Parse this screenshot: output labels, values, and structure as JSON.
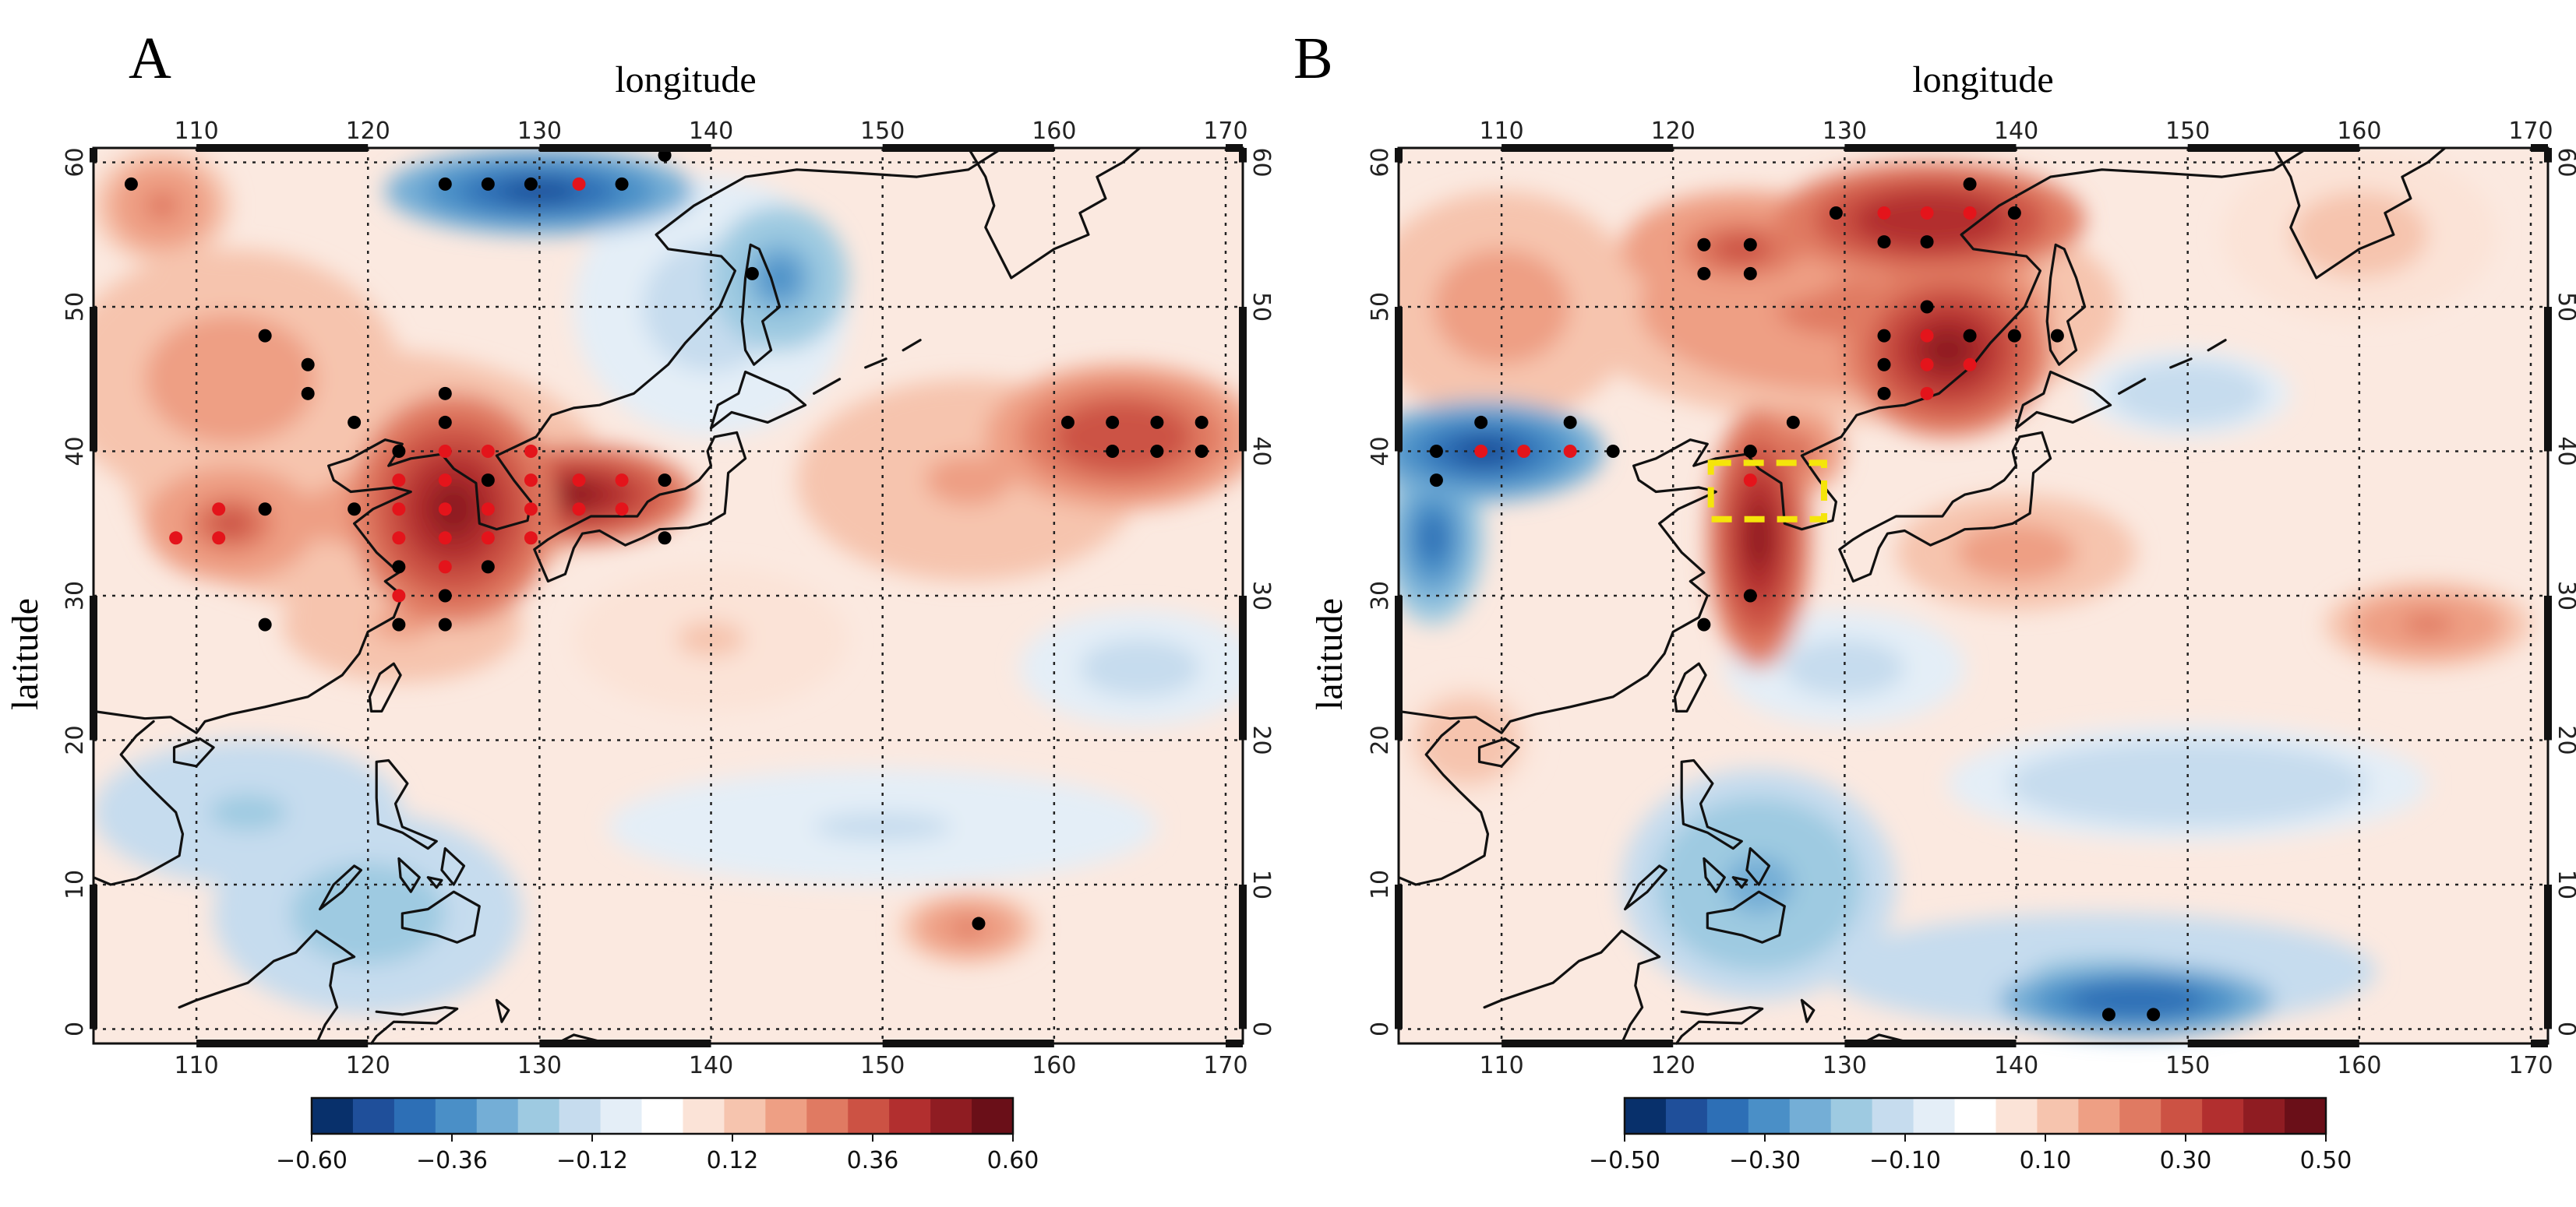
{
  "figure": {
    "panels": [
      {
        "id": "A",
        "letter": "A",
        "xlabel": "longitude",
        "ylabel": "latitude",
        "lon_ticks": [
          "110",
          "120",
          "130",
          "140",
          "150",
          "160",
          "170"
        ],
        "lat_ticks": [
          "0",
          "10",
          "20",
          "30",
          "40",
          "50",
          "60"
        ],
        "lon_range": [
          104,
          171
        ],
        "lat_range": [
          -1,
          61
        ],
        "colorbar": {
          "range": [
            -0.6,
            0.6
          ],
          "tick_labels": [
            "−0.60",
            "−0.36",
            "−0.12",
            "0.12",
            "0.36",
            "0.60"
          ],
          "tick_values": [
            -0.6,
            -0.36,
            -0.12,
            0.12,
            0.36,
            0.6
          ]
        },
        "blobs": [
          {
            "lon": 125,
            "lat": 36,
            "rx": 6,
            "ry": 8,
            "v": 0.55
          },
          {
            "lon": 132,
            "lat": 37,
            "rx": 7,
            "ry": 3.5,
            "v": 0.5
          },
          {
            "lon": 120,
            "lat": 38,
            "rx": 14,
            "ry": 9,
            "v": 0.25
          },
          {
            "lon": 112,
            "lat": 35,
            "rx": 5,
            "ry": 4,
            "v": 0.35
          },
          {
            "lon": 112,
            "lat": 45,
            "rx": 10,
            "ry": 9,
            "v": 0.25
          },
          {
            "lon": 108,
            "lat": 57,
            "rx": 4,
            "ry": 4,
            "v": 0.3
          },
          {
            "lon": 122,
            "lat": 28,
            "rx": 7,
            "ry": 4,
            "v": 0.2
          },
          {
            "lon": 164,
            "lat": 41,
            "rx": 8,
            "ry": 5,
            "v": 0.4
          },
          {
            "lon": 155,
            "lat": 38,
            "rx": 10,
            "ry": 7,
            "v": 0.2
          },
          {
            "lon": 155,
            "lat": 7,
            "rx": 4,
            "ry": 2.5,
            "v": 0.3
          },
          {
            "lon": 130,
            "lat": 58,
            "rx": 9,
            "ry": 3,
            "v": -0.5
          },
          {
            "lon": 144,
            "lat": 52,
            "rx": 4,
            "ry": 5,
            "v": -0.35
          },
          {
            "lon": 140,
            "lat": 50,
            "rx": 8,
            "ry": 9,
            "v": -0.15
          },
          {
            "lon": 120,
            "lat": 8,
            "rx": 9,
            "ry": 7,
            "v": -0.25
          },
          {
            "lon": 113,
            "lat": 15,
            "rx": 9,
            "ry": 5,
            "v": -0.2
          },
          {
            "lon": 165,
            "lat": 25,
            "rx": 7,
            "ry": 4,
            "v": -0.15
          },
          {
            "lon": 150,
            "lat": 14,
            "rx": 16,
            "ry": 4,
            "v": -0.12
          },
          {
            "lon": 140,
            "lat": 27,
            "rx": 8,
            "ry": 5,
            "v": 0.12
          }
        ],
        "dots": [
          {
            "lon": 106.2,
            "lat": 58.5,
            "c": "black"
          },
          {
            "lon": 124.5,
            "lat": 58.5,
            "c": "black"
          },
          {
            "lon": 127,
            "lat": 58.5,
            "c": "black"
          },
          {
            "lon": 129.5,
            "lat": 58.5,
            "c": "black"
          },
          {
            "lon": 132.3,
            "lat": 58.5,
            "c": "red"
          },
          {
            "lon": 134.8,
            "lat": 58.5,
            "c": "black"
          },
          {
            "lon": 137.3,
            "lat": 60.5,
            "c": "black"
          },
          {
            "lon": 142.4,
            "lat": 52.3,
            "c": "black"
          },
          {
            "lon": 114,
            "lat": 48,
            "c": "black"
          },
          {
            "lon": 116.5,
            "lat": 46,
            "c": "black"
          },
          {
            "lon": 116.5,
            "lat": 44,
            "c": "black"
          },
          {
            "lon": 124.5,
            "lat": 44,
            "c": "black"
          },
          {
            "lon": 119.2,
            "lat": 42,
            "c": "black"
          },
          {
            "lon": 124.5,
            "lat": 42,
            "c": "black"
          },
          {
            "lon": 121.8,
            "lat": 40,
            "c": "black"
          },
          {
            "lon": 124.5,
            "lat": 40,
            "c": "red"
          },
          {
            "lon": 127,
            "lat": 40,
            "c": "red"
          },
          {
            "lon": 129.5,
            "lat": 40,
            "c": "red"
          },
          {
            "lon": 121.8,
            "lat": 38,
            "c": "red"
          },
          {
            "lon": 124.5,
            "lat": 38,
            "c": "red"
          },
          {
            "lon": 127,
            "lat": 38,
            "c": "black"
          },
          {
            "lon": 129.5,
            "lat": 38,
            "c": "red"
          },
          {
            "lon": 132.3,
            "lat": 38,
            "c": "red"
          },
          {
            "lon": 134.8,
            "lat": 38,
            "c": "red"
          },
          {
            "lon": 137.3,
            "lat": 38,
            "c": "black"
          },
          {
            "lon": 111.3,
            "lat": 36,
            "c": "red"
          },
          {
            "lon": 114,
            "lat": 36,
            "c": "black"
          },
          {
            "lon": 119.2,
            "lat": 36,
            "c": "black"
          },
          {
            "lon": 121.8,
            "lat": 36,
            "c": "red"
          },
          {
            "lon": 124.5,
            "lat": 36,
            "c": "red"
          },
          {
            "lon": 127,
            "lat": 36,
            "c": "red"
          },
          {
            "lon": 129.5,
            "lat": 36,
            "c": "red"
          },
          {
            "lon": 132.3,
            "lat": 36,
            "c": "red"
          },
          {
            "lon": 134.8,
            "lat": 36,
            "c": "red"
          },
          {
            "lon": 108.8,
            "lat": 34,
            "c": "red"
          },
          {
            "lon": 111.3,
            "lat": 34,
            "c": "red"
          },
          {
            "lon": 121.8,
            "lat": 34,
            "c": "red"
          },
          {
            "lon": 124.5,
            "lat": 34,
            "c": "red"
          },
          {
            "lon": 127,
            "lat": 34,
            "c": "red"
          },
          {
            "lon": 129.5,
            "lat": 34,
            "c": "red"
          },
          {
            "lon": 137.3,
            "lat": 34,
            "c": "black"
          },
          {
            "lon": 121.8,
            "lat": 32,
            "c": "black"
          },
          {
            "lon": 124.5,
            "lat": 32,
            "c": "red"
          },
          {
            "lon": 127,
            "lat": 32,
            "c": "black"
          },
          {
            "lon": 121.8,
            "lat": 30,
            "c": "red"
          },
          {
            "lon": 124.5,
            "lat": 30,
            "c": "black"
          },
          {
            "lon": 114,
            "lat": 28,
            "c": "black"
          },
          {
            "lon": 121.8,
            "lat": 28,
            "c": "black"
          },
          {
            "lon": 124.5,
            "lat": 28,
            "c": "black"
          },
          {
            "lon": 160.8,
            "lat": 42,
            "c": "black"
          },
          {
            "lon": 163.4,
            "lat": 42,
            "c": "black"
          },
          {
            "lon": 166,
            "lat": 42,
            "c": "black"
          },
          {
            "lon": 168.6,
            "lat": 42,
            "c": "black"
          },
          {
            "lon": 163.4,
            "lat": 40,
            "c": "black"
          },
          {
            "lon": 166,
            "lat": 40,
            "c": "black"
          },
          {
            "lon": 168.6,
            "lat": 40,
            "c": "black"
          },
          {
            "lon": 155.6,
            "lat": 7.3,
            "c": "black"
          }
        ]
      },
      {
        "id": "B",
        "letter": "B",
        "xlabel": "longitude",
        "ylabel": "latitude",
        "lon_ticks": [
          "110",
          "120",
          "130",
          "140",
          "150",
          "160",
          "170"
        ],
        "lat_ticks": [
          "0",
          "10",
          "20",
          "30",
          "40",
          "50",
          "60"
        ],
        "lon_range": [
          104,
          171
        ],
        "lat_range": [
          -1,
          61
        ],
        "colorbar": {
          "range": [
            -0.5,
            0.5
          ],
          "tick_labels": [
            "−0.50",
            "−0.30",
            "−0.10",
            "0.10",
            "0.30",
            "0.50"
          ],
          "tick_values": [
            -0.5,
            -0.3,
            -0.1,
            0.1,
            0.3,
            0.5
          ]
        },
        "highlight_box": {
          "lon0": 122.2,
          "lon1": 128.8,
          "lat0": 35.3,
          "lat1": 39.2,
          "color": "#f5e50a"
        },
        "blobs": [
          {
            "lon": 136,
            "lat": 47,
            "rx": 6,
            "ry": 6,
            "v": 0.45
          },
          {
            "lon": 135,
            "lat": 56,
            "rx": 9,
            "ry": 4,
            "v": 0.4
          },
          {
            "lon": 124,
            "lat": 54,
            "rx": 7,
            "ry": 4,
            "v": 0.3
          },
          {
            "lon": 130,
            "lat": 50,
            "rx": 16,
            "ry": 8,
            "v": 0.25
          },
          {
            "lon": 125,
            "lat": 34,
            "rx": 3,
            "ry": 9,
            "v": 0.45
          },
          {
            "lon": 127,
            "lat": 40,
            "rx": 3,
            "ry": 3,
            "v": 0.3
          },
          {
            "lon": 110,
            "lat": 50,
            "rx": 8,
            "ry": 8,
            "v": 0.2
          },
          {
            "lon": 140,
            "lat": 33,
            "rx": 7,
            "ry": 4,
            "v": 0.2
          },
          {
            "lon": 164,
            "lat": 28,
            "rx": 6,
            "ry": 3,
            "v": 0.25
          },
          {
            "lon": 108,
            "lat": 20,
            "rx": 4,
            "ry": 4,
            "v": 0.15
          },
          {
            "lon": 160,
            "lat": 55,
            "rx": 8,
            "ry": 6,
            "v": 0.12
          },
          {
            "lon": 109,
            "lat": 40,
            "rx": 7,
            "ry": 3.5,
            "v": -0.42
          },
          {
            "lon": 106,
            "lat": 34,
            "rx": 3,
            "ry": 6,
            "v": -0.35
          },
          {
            "lon": 147,
            "lat": 2,
            "rx": 8,
            "ry": 2.5,
            "v": -0.4
          },
          {
            "lon": 145,
            "lat": 4,
            "rx": 16,
            "ry": 4,
            "v": -0.18
          },
          {
            "lon": 125,
            "lat": 10,
            "rx": 8,
            "ry": 8,
            "v": -0.22
          },
          {
            "lon": 150,
            "lat": 17,
            "rx": 14,
            "ry": 4,
            "v": -0.15
          },
          {
            "lon": 150,
            "lat": 44,
            "rx": 6,
            "ry": 3,
            "v": -0.15
          },
          {
            "lon": 130,
            "lat": 25,
            "rx": 7,
            "ry": 4,
            "v": -0.12
          }
        ],
        "dots": [
          {
            "lon": 137.3,
            "lat": 58.5,
            "c": "black"
          },
          {
            "lon": 129.5,
            "lat": 56.5,
            "c": "black"
          },
          {
            "lon": 132.3,
            "lat": 56.5,
            "c": "red"
          },
          {
            "lon": 134.8,
            "lat": 56.5,
            "c": "red"
          },
          {
            "lon": 137.3,
            "lat": 56.5,
            "c": "red"
          },
          {
            "lon": 139.9,
            "lat": 56.5,
            "c": "black"
          },
          {
            "lon": 132.3,
            "lat": 54.5,
            "c": "black"
          },
          {
            "lon": 134.8,
            "lat": 54.5,
            "c": "black"
          },
          {
            "lon": 121.8,
            "lat": 54.3,
            "c": "black"
          },
          {
            "lon": 124.5,
            "lat": 54.3,
            "c": "black"
          },
          {
            "lon": 121.8,
            "lat": 52.3,
            "c": "black"
          },
          {
            "lon": 124.5,
            "lat": 52.3,
            "c": "black"
          },
          {
            "lon": 134.8,
            "lat": 50,
            "c": "black"
          },
          {
            "lon": 132.3,
            "lat": 48,
            "c": "black"
          },
          {
            "lon": 134.8,
            "lat": 48,
            "c": "red"
          },
          {
            "lon": 137.3,
            "lat": 48,
            "c": "black"
          },
          {
            "lon": 139.9,
            "lat": 48,
            "c": "black"
          },
          {
            "lon": 142.4,
            "lat": 48,
            "c": "black"
          },
          {
            "lon": 132.3,
            "lat": 46,
            "c": "black"
          },
          {
            "lon": 134.8,
            "lat": 46,
            "c": "red"
          },
          {
            "lon": 137.3,
            "lat": 46,
            "c": "red"
          },
          {
            "lon": 132.3,
            "lat": 44,
            "c": "black"
          },
          {
            "lon": 134.8,
            "lat": 44,
            "c": "red"
          },
          {
            "lon": 106.2,
            "lat": 40,
            "c": "black"
          },
          {
            "lon": 108.8,
            "lat": 40,
            "c": "red"
          },
          {
            "lon": 111.3,
            "lat": 40,
            "c": "red"
          },
          {
            "lon": 114,
            "lat": 40,
            "c": "red"
          },
          {
            "lon": 116.5,
            "lat": 40,
            "c": "black"
          },
          {
            "lon": 108.8,
            "lat": 42,
            "c": "black"
          },
          {
            "lon": 114,
            "lat": 42,
            "c": "black"
          },
          {
            "lon": 106.2,
            "lat": 38,
            "c": "black"
          },
          {
            "lon": 124.5,
            "lat": 40,
            "c": "black"
          },
          {
            "lon": 127,
            "lat": 42,
            "c": "black"
          },
          {
            "lon": 124.5,
            "lat": 38,
            "c": "red"
          },
          {
            "lon": 124.5,
            "lat": 30,
            "c": "black"
          },
          {
            "lon": 121.8,
            "lat": 28,
            "c": "black"
          },
          {
            "lon": 145.4,
            "lat": 1,
            "c": "black"
          },
          {
            "lon": 148,
            "lat": 1,
            "c": "black"
          }
        ]
      }
    ]
  }
}
